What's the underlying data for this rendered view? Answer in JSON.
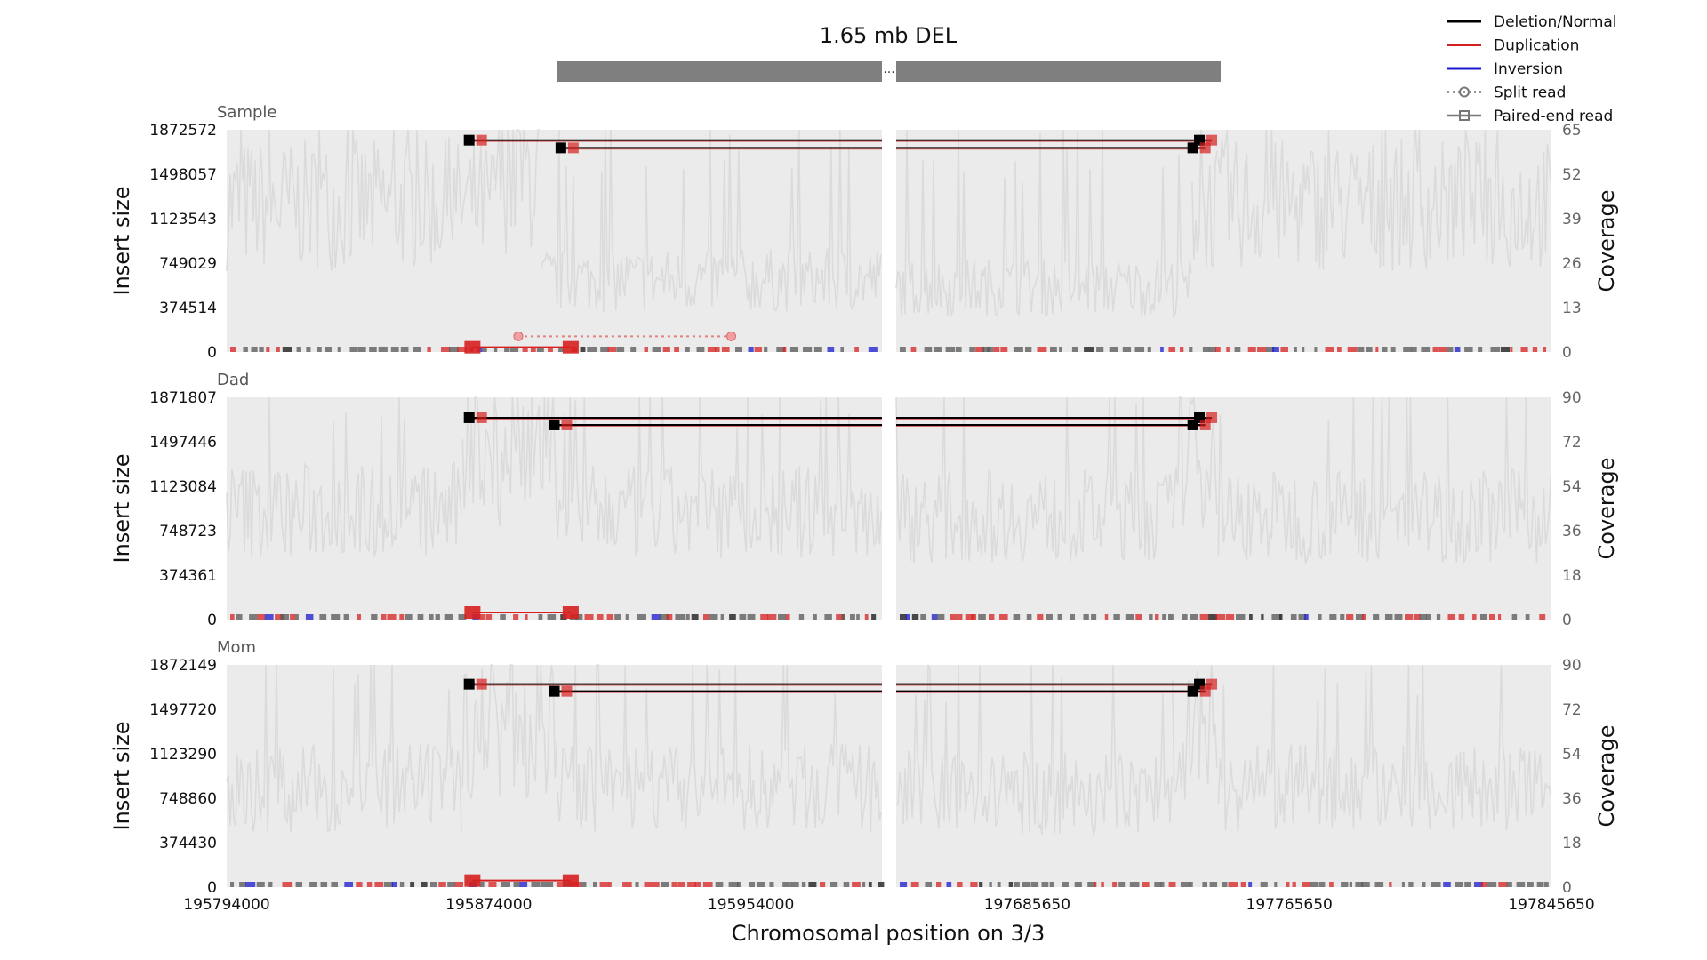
{
  "chart_data": {
    "type": "line",
    "title": "1.65 mb DEL",
    "xlabel": "Chromosomal position on 3/3",
    "left_region": {
      "xlim": [
        195794000,
        195994000
      ],
      "ticks": [
        195794000,
        195874000,
        195954000
      ],
      "tick_labels": [
        "195794000",
        "195874000",
        "195954000"
      ]
    },
    "right_region": {
      "xlim": [
        197645650,
        197845650
      ],
      "ticks": [
        197685650,
        197765650,
        197845650
      ],
      "tick_labels": [
        "197685650",
        "197765650",
        "197845650"
      ]
    },
    "legend_position": "top-right",
    "legend": [
      {
        "label": "Deletion/Normal",
        "color": "#000000",
        "style": "solid"
      },
      {
        "label": "Duplication",
        "color": "#d62020",
        "style": "solid"
      },
      {
        "label": "Inversion",
        "color": "#1a1acc",
        "style": "solid"
      },
      {
        "label": "Split read",
        "color": "#777777",
        "style": "dotted-circle"
      },
      {
        "label": "Paired-end read",
        "color": "#777777",
        "style": "solid-square"
      }
    ],
    "colors": {
      "background": "#ebebeb",
      "coverage": "#d9d9d9",
      "deletion": "#000000",
      "duplication": "#d62020",
      "inversion": "#1a1acc",
      "variant_bar": "#7f7f7f"
    },
    "panels": [
      {
        "name": "Sample",
        "ylabel": "Insert size",
        "y2label": "Coverage",
        "yticks": [
          0,
          374514,
          749029,
          1123543,
          1498057,
          1872572
        ],
        "ytick_labels": [
          "0",
          "374514",
          "749029",
          "1123543",
          "1498057",
          "1872572"
        ],
        "y2ticks": [
          0,
          13,
          26,
          39,
          52,
          65
        ],
        "y2_max": 65,
        "coverage_profile": [
          {
            "start": 195794000,
            "end": 195876000,
            "mean": 43
          },
          {
            "start": 195876000,
            "end": 195890000,
            "mean": 52
          },
          {
            "start": 195890000,
            "end": 195994000,
            "mean": 21
          },
          {
            "start": 197645650,
            "end": 197736000,
            "mean": 19
          },
          {
            "start": 197736000,
            "end": 197744000,
            "mean": 42
          },
          {
            "start": 197744000,
            "end": 197845650,
            "mean": 43
          }
        ],
        "deletion_calls": [
          {
            "start": 195868000,
            "end": 197742000,
            "insert_size": 1785000
          },
          {
            "start": 195896000,
            "end": 197740000,
            "insert_size": 1720000
          }
        ],
        "split_reads": [
          {
            "start": 195883000,
            "end": 195948000,
            "insert_size": 132000
          }
        ],
        "duplication_reads": [
          {
            "start": 195869000,
            "end": 195899000,
            "insert_size": 40000
          }
        ]
      },
      {
        "name": "Dad",
        "ylabel": "Insert size",
        "y2label": "Coverage",
        "yticks": [
          0,
          374361,
          748723,
          1123084,
          1497446,
          1871807
        ],
        "ytick_labels": [
          "0",
          "374361",
          "748723",
          "1123084",
          "1497446",
          "1871807"
        ],
        "y2ticks": [
          0,
          18,
          36,
          54,
          72,
          90
        ],
        "y2_max": 90,
        "coverage_profile": [
          {
            "start": 195794000,
            "end": 195866000,
            "mean": 44
          },
          {
            "start": 195866000,
            "end": 195895000,
            "mean": 68
          },
          {
            "start": 195895000,
            "end": 195994000,
            "mean": 43
          },
          {
            "start": 197645650,
            "end": 197730000,
            "mean": 42
          },
          {
            "start": 197730000,
            "end": 197744000,
            "mean": 66
          },
          {
            "start": 197744000,
            "end": 197845650,
            "mean": 42
          }
        ],
        "deletion_calls": [
          {
            "start": 195868000,
            "end": 197742000,
            "insert_size": 1700000
          },
          {
            "start": 195894000,
            "end": 197740000,
            "insert_size": 1640000
          }
        ],
        "split_reads": [],
        "duplication_reads": [
          {
            "start": 195869000,
            "end": 195899000,
            "insert_size": 60000
          }
        ]
      },
      {
        "name": "Mom",
        "ylabel": "Insert size",
        "y2label": "Coverage",
        "yticks": [
          0,
          374430,
          748860,
          1123290,
          1497720,
          1872149
        ],
        "ytick_labels": [
          "0",
          "374430",
          "748860",
          "1123290",
          "1497720",
          "1872149"
        ],
        "y2ticks": [
          0,
          18,
          36,
          54,
          72,
          90
        ],
        "y2_max": 90,
        "coverage_profile": [
          {
            "start": 195794000,
            "end": 195866000,
            "mean": 40
          },
          {
            "start": 195866000,
            "end": 195895000,
            "mean": 64
          },
          {
            "start": 195895000,
            "end": 195994000,
            "mean": 40
          },
          {
            "start": 197645650,
            "end": 197730000,
            "mean": 38
          },
          {
            "start": 197730000,
            "end": 197744000,
            "mean": 64
          },
          {
            "start": 197744000,
            "end": 197845650,
            "mean": 40
          }
        ],
        "deletion_calls": [
          {
            "start": 195868000,
            "end": 197742000,
            "insert_size": 1710000
          },
          {
            "start": 195894000,
            "end": 197740000,
            "insert_size": 1650000
          }
        ],
        "split_reads": [],
        "duplication_reads": [
          {
            "start": 195869000,
            "end": 195899000,
            "insert_size": 55000
          }
        ]
      }
    ]
  }
}
